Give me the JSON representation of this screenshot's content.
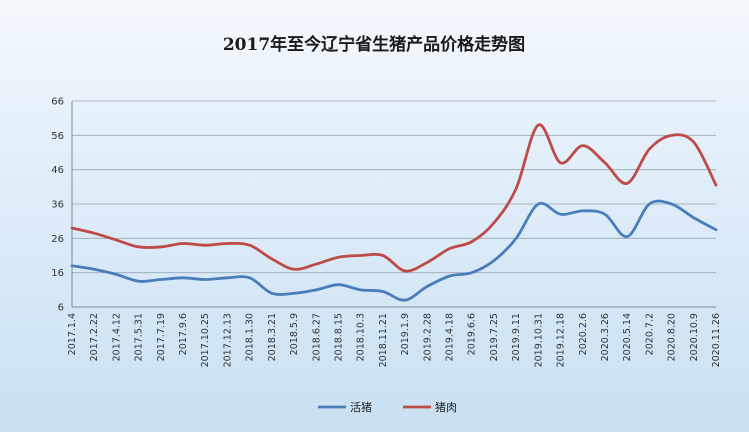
{
  "chart_data": {
    "type": "line",
    "title": "2017年至今辽宁省生猪产品价格走势图",
    "ylim": [
      6,
      66
    ],
    "yticks": [
      6,
      16,
      26,
      36,
      46,
      56,
      66
    ],
    "grid": true,
    "legend_position": "bottom",
    "x": [
      "2017.1.4",
      "2017.2.22",
      "2017.4.12",
      "2017.5.31",
      "2017.7.19",
      "2017.9.6",
      "2017.10.25",
      "2017.12.13",
      "2018.1.30",
      "2018.3.21",
      "2018.5.9",
      "2018.6.27",
      "2018.8.15",
      "2018.10.3",
      "2018.11.21",
      "2019.1.9",
      "2019.2.28",
      "2019.4.18",
      "2019.6.6",
      "2019.7.25",
      "2019.9.11",
      "2019.10.31",
      "2019.12.18",
      "2020.2.6",
      "2020.3.26",
      "2020.5.14",
      "2020.7.2",
      "2020.8.20",
      "2020.10.9",
      "2020.11.26"
    ],
    "series": [
      {
        "name": "活猪",
        "color": "#4a7ebb",
        "values": [
          18,
          17,
          15.5,
          13.5,
          14,
          14.5,
          14,
          14.5,
          14.5,
          10,
          10,
          11,
          12.5,
          11,
          10.5,
          8,
          12,
          15,
          16,
          19.5,
          26,
          36,
          33,
          34,
          33,
          26.5,
          36,
          36,
          32,
          28.5
        ]
      },
      {
        "name": "猪肉",
        "color": "#be4b48",
        "values": [
          29,
          27.5,
          25.5,
          23.5,
          23.5,
          24.5,
          24,
          24.5,
          24,
          20,
          17,
          18.5,
          20.5,
          21,
          21,
          16.5,
          19,
          23,
          25,
          30.5,
          40.5,
          59,
          48,
          53,
          48,
          42,
          52,
          56,
          54,
          41.5
        ]
      }
    ]
  }
}
